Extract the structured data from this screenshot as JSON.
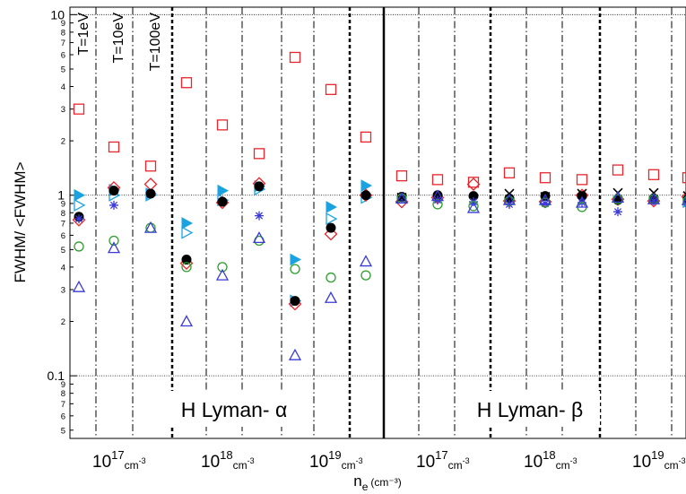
{
  "chart_data": {
    "type": "scatter",
    "title": "",
    "ylabel": "FWHM/ <FWHM>",
    "xlabel": "n",
    "xlabel_sub": "e",
    "xlabel_unit": "(cm⁻³)",
    "yscale": "log",
    "ylim": [
      0.045,
      11
    ],
    "y_major_ticks": [
      {
        "value": 0.1,
        "label": "0.1"
      },
      {
        "value": 1,
        "label": "1"
      },
      {
        "value": 10,
        "label": "10"
      }
    ],
    "y_minor_ticks": [
      {
        "value": 0.05,
        "label": "5"
      },
      {
        "value": 0.06,
        "label": "6"
      },
      {
        "value": 0.07,
        "label": "7"
      },
      {
        "value": 0.08,
        "label": "8"
      },
      {
        "value": 0.09,
        "label": "9"
      },
      {
        "value": 0.2,
        "label": "2"
      },
      {
        "value": 0.3,
        "label": "3"
      },
      {
        "value": 0.4,
        "label": "4"
      },
      {
        "value": 0.5,
        "label": "5"
      },
      {
        "value": 0.6,
        "label": "6"
      },
      {
        "value": 0.7,
        "label": "7"
      },
      {
        "value": 0.8,
        "label": "8"
      },
      {
        "value": 0.9,
        "label": "9"
      },
      {
        "value": 2,
        "label": "2"
      },
      {
        "value": 3,
        "label": "3"
      },
      {
        "value": 4,
        "label": "4"
      },
      {
        "value": 5,
        "label": "5"
      },
      {
        "value": 6,
        "label": "6"
      },
      {
        "value": 7,
        "label": "7"
      },
      {
        "value": 8,
        "label": "8"
      },
      {
        "value": 9,
        "label": "9"
      }
    ],
    "grid_y": [
      0.1,
      1,
      10
    ],
    "x_tick_labels": [
      {
        "base": "10",
        "exp": "17",
        "unit": "cm",
        "unit_exp": "-3",
        "group": 1
      },
      {
        "base": "10",
        "exp": "18",
        "unit": "cm",
        "unit_exp": "-3",
        "group": 4
      },
      {
        "base": "10",
        "exp": "19",
        "unit": "cm",
        "unit_exp": "-3",
        "group": 7
      },
      {
        "base": "10",
        "exp": "17",
        "unit": "cm",
        "unit_exp": "-3",
        "group": 10
      },
      {
        "base": "10",
        "exp": "18",
        "unit": "cm",
        "unit_exp": "-3",
        "group": 13
      },
      {
        "base": "10",
        "exp": "19",
        "unit": "cm",
        "unit_exp": "-3",
        "group": 16
      }
    ],
    "temperature_labels": [
      {
        "text": "T=1eV",
        "group": 0
      },
      {
        "text": "T=10eV",
        "group": 1
      },
      {
        "text": "T=100eV",
        "group": 2
      }
    ],
    "section_labels": [
      {
        "text": "H Lyman- α",
        "panel": 0
      },
      {
        "text": "H Lyman- β",
        "panel": 1
      }
    ],
    "groups": 18,
    "series": [
      {
        "marker": "square",
        "color": "#e8262c",
        "values": [
          3.0,
          1.85,
          1.45,
          4.2,
          2.45,
          1.7,
          5.8,
          3.85,
          2.1,
          1.28,
          1.22,
          1.18,
          1.33,
          1.25,
          1.22,
          1.38,
          1.3,
          1.25
        ]
      },
      {
        "marker": "triangle-right-filled",
        "color": "#1aa3e0",
        "values": [
          1.0,
          1.07,
          1.02,
          0.7,
          1.06,
          1.12,
          0.44,
          0.86,
          1.13,
          null,
          null,
          null,
          null,
          null,
          null,
          null,
          null,
          null
        ]
      },
      {
        "marker": "triangle-right-open",
        "color": "#1aa3e0",
        "values": [
          0.88,
          1.0,
          1.0,
          0.62,
          0.94,
          1.08,
          0.26,
          0.74,
          0.97,
          null,
          null,
          null,
          null,
          null,
          null,
          null,
          null,
          0.92
        ]
      },
      {
        "marker": "diamond",
        "color": "#e8262c",
        "values": [
          0.73,
          1.1,
          1.15,
          0.42,
          0.91,
          1.16,
          0.25,
          0.61,
          1.0,
          0.92,
          0.97,
          1.15,
          0.93,
          0.92,
          1.0,
          0.95,
          0.93,
          0.98
        ]
      },
      {
        "marker": "circle-filled",
        "color": "#000000",
        "values": [
          0.76,
          1.06,
          1.02,
          0.44,
          0.92,
          1.12,
          0.26,
          0.66,
          1.0,
          0.98,
          1.0,
          0.99,
          0.96,
          0.99,
          0.99,
          0.94,
          0.96,
          0.95
        ]
      },
      {
        "marker": "asterisk",
        "color": "#3a3ad8",
        "values": [
          0.74,
          0.88,
          null,
          null,
          null,
          0.77,
          null,
          null,
          null,
          0.96,
          0.94,
          0.92,
          0.89,
          0.9,
          0.91,
          0.81,
          0.93,
          0.91
        ]
      },
      {
        "marker": "x",
        "color": "#000000",
        "values": [
          null,
          null,
          null,
          null,
          null,
          null,
          null,
          null,
          null,
          0.97,
          null,
          null,
          1.02,
          0.98,
          1.02,
          1.03,
          1.03,
          0.99
        ]
      },
      {
        "marker": "circle-open",
        "color": "#2e9e2e",
        "values": [
          0.52,
          0.56,
          0.66,
          0.4,
          0.4,
          0.56,
          0.39,
          0.35,
          0.36,
          0.96,
          0.89,
          0.87,
          0.93,
          0.91,
          0.86,
          0.95,
          0.95,
          0.93
        ]
      },
      {
        "marker": "triangle-up",
        "color": "#3a3ad8",
        "values": [
          0.31,
          0.51,
          0.66,
          0.2,
          0.36,
          0.58,
          0.13,
          0.27,
          0.43,
          0.96,
          0.99,
          0.85,
          0.94,
          0.94,
          0.91,
          0.97,
          0.95,
          0.94
        ]
      }
    ]
  }
}
